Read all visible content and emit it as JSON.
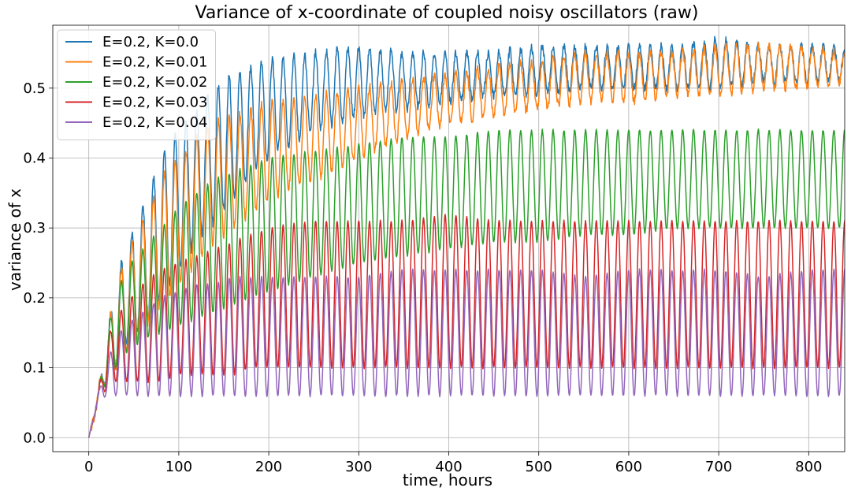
{
  "chart_data": {
    "type": "line",
    "title": "Variance of x-coordinate of coupled noisy oscillators (raw)",
    "xlabel": "time, hours",
    "ylabel": "variance of x",
    "xlim": [
      -40,
      840
    ],
    "ylim": [
      -0.02,
      0.59
    ],
    "xticks": [
      0,
      100,
      200,
      300,
      400,
      500,
      600,
      700,
      800
    ],
    "yticks": [
      0.0,
      0.1,
      0.2,
      0.3,
      0.4,
      0.5
    ],
    "grid": true,
    "legend_position": "top-left",
    "period_hours": 12,
    "series": [
      {
        "name": "E=0.2, K=0.0",
        "color": "#1f77b4",
        "envelope": {
          "t": [
            0,
            10,
            20,
            30,
            40,
            60,
            80,
            100,
            120,
            140,
            160,
            180,
            200,
            250,
            300,
            350,
            400,
            450,
            500,
            550,
            600,
            650,
            700,
            750,
            800,
            840
          ],
          "min": [
            0,
            0.05,
            0.08,
            0.1,
            0.13,
            0.16,
            0.2,
            0.24,
            0.28,
            0.31,
            0.34,
            0.38,
            0.4,
            0.44,
            0.46,
            0.47,
            0.48,
            0.49,
            0.49,
            0.5,
            0.5,
            0.5,
            0.5,
            0.51,
            0.51,
            0.51
          ],
          "max": [
            0,
            0.06,
            0.15,
            0.22,
            0.27,
            0.33,
            0.4,
            0.44,
            0.47,
            0.5,
            0.52,
            0.53,
            0.54,
            0.55,
            0.56,
            0.55,
            0.55,
            0.55,
            0.56,
            0.56,
            0.56,
            0.56,
            0.57,
            0.56,
            0.56,
            0.56
          ]
        }
      },
      {
        "name": "E=0.2, K=0.01",
        "color": "#ff7f0e",
        "envelope": {
          "t": [
            0,
            10,
            20,
            30,
            40,
            60,
            80,
            100,
            120,
            140,
            160,
            180,
            200,
            250,
            300,
            350,
            400,
            450,
            500,
            550,
            600,
            650,
            700,
            750,
            800,
            840
          ],
          "min": [
            0,
            0.05,
            0.08,
            0.1,
            0.12,
            0.15,
            0.19,
            0.22,
            0.25,
            0.28,
            0.3,
            0.32,
            0.34,
            0.37,
            0.4,
            0.43,
            0.45,
            0.46,
            0.47,
            0.48,
            0.48,
            0.49,
            0.49,
            0.5,
            0.5,
            0.51
          ],
          "max": [
            0,
            0.06,
            0.15,
            0.21,
            0.26,
            0.31,
            0.37,
            0.4,
            0.43,
            0.45,
            0.46,
            0.47,
            0.48,
            0.49,
            0.5,
            0.51,
            0.52,
            0.53,
            0.54,
            0.55,
            0.55,
            0.55,
            0.56,
            0.56,
            0.56,
            0.55
          ]
        }
      },
      {
        "name": "E=0.2, K=0.02",
        "color": "#2ca02c",
        "envelope": {
          "t": [
            0,
            10,
            20,
            30,
            40,
            60,
            80,
            100,
            120,
            140,
            160,
            180,
            200,
            250,
            300,
            350,
            400,
            450,
            500,
            550,
            600,
            650,
            700,
            750,
            800,
            840
          ],
          "min": [
            0,
            0.05,
            0.08,
            0.1,
            0.12,
            0.14,
            0.15,
            0.16,
            0.17,
            0.18,
            0.19,
            0.2,
            0.21,
            0.23,
            0.25,
            0.26,
            0.27,
            0.28,
            0.28,
            0.29,
            0.29,
            0.3,
            0.3,
            0.3,
            0.3,
            0.3
          ],
          "max": [
            0,
            0.06,
            0.15,
            0.2,
            0.24,
            0.27,
            0.3,
            0.33,
            0.35,
            0.37,
            0.38,
            0.39,
            0.4,
            0.41,
            0.42,
            0.43,
            0.43,
            0.44,
            0.44,
            0.44,
            0.44,
            0.44,
            0.44,
            0.44,
            0.44,
            0.44
          ]
        }
      },
      {
        "name": "E=0.2, K=0.03",
        "color": "#d62728",
        "envelope": {
          "t": [
            0,
            10,
            20,
            30,
            40,
            60,
            80,
            100,
            120,
            140,
            160,
            180,
            200,
            250,
            300,
            350,
            400,
            450,
            500,
            550,
            600,
            650,
            700,
            750,
            800,
            840
          ],
          "min": [
            0,
            0.05,
            0.07,
            0.08,
            0.08,
            0.08,
            0.08,
            0.09,
            0.09,
            0.09,
            0.09,
            0.1,
            0.1,
            0.1,
            0.1,
            0.1,
            0.1,
            0.1,
            0.1,
            0.1,
            0.1,
            0.1,
            0.1,
            0.1,
            0.1,
            0.1
          ],
          "max": [
            0,
            0.06,
            0.14,
            0.17,
            0.19,
            0.22,
            0.24,
            0.25,
            0.26,
            0.27,
            0.28,
            0.29,
            0.3,
            0.31,
            0.31,
            0.31,
            0.32,
            0.31,
            0.31,
            0.31,
            0.31,
            0.31,
            0.31,
            0.31,
            0.31,
            0.31
          ]
        }
      },
      {
        "name": "E=0.2, K=0.04",
        "color": "#9467bd",
        "envelope": {
          "t": [
            0,
            10,
            20,
            30,
            40,
            60,
            80,
            100,
            120,
            140,
            160,
            180,
            200,
            250,
            300,
            350,
            400,
            450,
            500,
            550,
            600,
            650,
            700,
            750,
            800,
            840
          ],
          "min": [
            0,
            0.05,
            0.06,
            0.06,
            0.06,
            0.06,
            0.06,
            0.06,
            0.06,
            0.06,
            0.06,
            0.06,
            0.06,
            0.06,
            0.06,
            0.06,
            0.06,
            0.06,
            0.06,
            0.06,
            0.06,
            0.06,
            0.06,
            0.06,
            0.06,
            0.06
          ],
          "max": [
            0,
            0.06,
            0.11,
            0.14,
            0.16,
            0.18,
            0.2,
            0.21,
            0.22,
            0.22,
            0.23,
            0.23,
            0.23,
            0.23,
            0.23,
            0.24,
            0.24,
            0.24,
            0.24,
            0.23,
            0.24,
            0.24,
            0.24,
            0.23,
            0.24,
            0.24
          ]
        }
      }
    ]
  }
}
